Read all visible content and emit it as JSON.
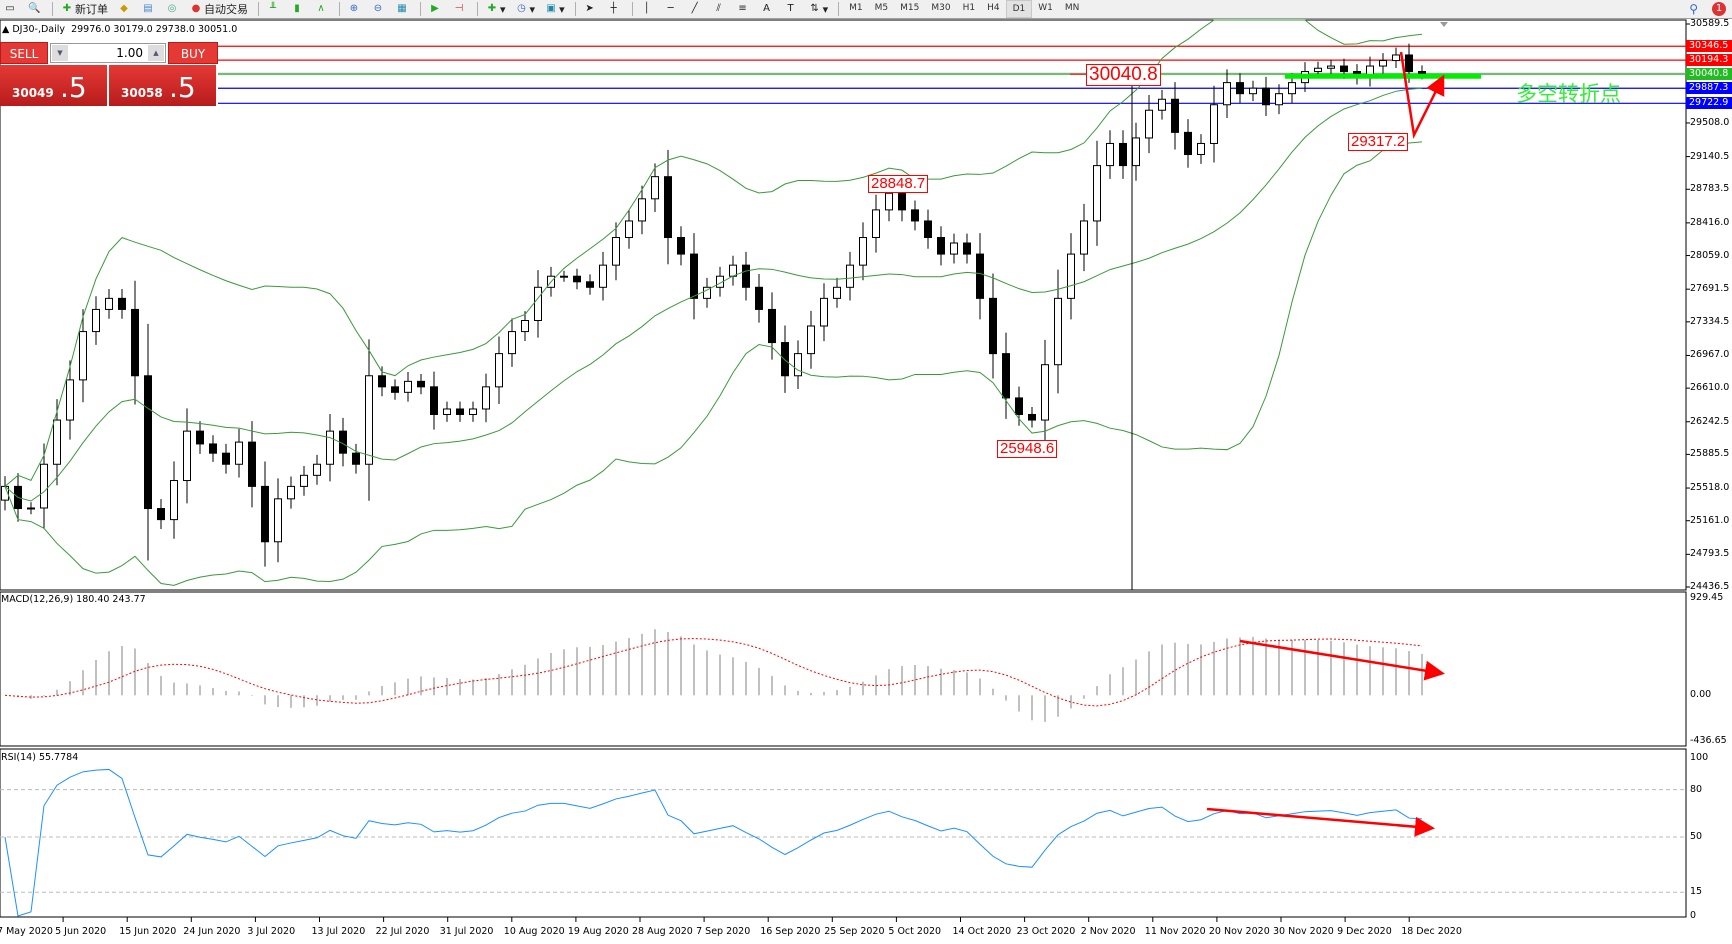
{
  "toolbar": {
    "new_order_label": "新订单",
    "auto_trading_label": "自动交易",
    "timeframes": [
      "M1",
      "M5",
      "M15",
      "M30",
      "H1",
      "H4",
      "D1",
      "W1",
      "MN"
    ],
    "active_timeframe": "D1",
    "notification_count": "1"
  },
  "chart_header": {
    "symbol_title": "DJ30-,Daily",
    "ohlc": "29976.0 30179.0 29738.0 30051.0"
  },
  "one_click_trading": {
    "sell_label": "SELL",
    "buy_label": "BUY",
    "lot_value": "1.00",
    "sell_price_main": "30049",
    "sell_price_big": ".5",
    "buy_price_main": "30058",
    "buy_price_big": ".5"
  },
  "price_axis": {
    "max": 30589.5,
    "min": 24436.5,
    "ticks": [
      "30589.5",
      "29508.0",
      "29140.5",
      "28783.5",
      "28416.0",
      "28059.0",
      "27691.5",
      "27334.5",
      "26967.0",
      "26610.0",
      "26242.5",
      "25885.5",
      "25518.0",
      "25161.0",
      "24793.5",
      "24436.5"
    ]
  },
  "horizontal_lines": [
    {
      "value": "30346.5",
      "color": "#ff0000"
    },
    {
      "value": "30194.3",
      "color": "#ff0000"
    },
    {
      "value": "30040.8",
      "color": "#22bb22"
    },
    {
      "value": "29887.3",
      "color": "#0000ff"
    },
    {
      "value": "29722.9",
      "color": "#0000ff"
    }
  ],
  "annotations": {
    "level_label": "30040.8",
    "high_label": "28848.7",
    "low_label": "25948.6",
    "dip_label": "29317.2",
    "pivot_text": "多空转折点"
  },
  "candles_close": [
    25536,
    25294,
    25300,
    25778,
    26261,
    26700,
    27228,
    27470,
    27591,
    27470,
    26745,
    25294,
    25173,
    25600,
    26140,
    26000,
    25899,
    25778,
    26020,
    25536,
    24931,
    25400,
    25536,
    25657,
    25778,
    26140,
    25899,
    25778,
    26745,
    26624,
    26564,
    26684,
    26624,
    26322,
    26382,
    26322,
    26382,
    26624,
    26987,
    27228,
    27349,
    27712,
    27833,
    27833,
    27772,
    27712,
    27954,
    28256,
    28437,
    28679,
    28921,
    28256,
    28075,
    27591,
    27712,
    27833,
    27954,
    27712,
    27470,
    27108,
    26745,
    26987,
    27289,
    27591,
    27712,
    27954,
    28256,
    28558,
    28740,
    28558,
    28437,
    28256,
    28075,
    28196,
    28075,
    27591,
    26987,
    26503,
    26322,
    26261,
    26866,
    27591,
    28075,
    28437,
    29042,
    29284,
    29042,
    29344,
    29647,
    29767,
    29405,
    29163,
    29284,
    29707,
    29949,
    29828,
    29888,
    29707,
    29828,
    29949,
    30070,
    30106,
    30130,
    30070,
    30009,
    30130,
    30190,
    30251,
    30070,
    30051
  ],
  "macd": {
    "label": "MACD(12,26,9) 180.40 243.77",
    "ticks": [
      "929.45",
      "0.00",
      "-436.65"
    ],
    "max": 929.45,
    "min": -436.65
  },
  "rsi": {
    "label": "RSI(14) 55.7784",
    "ticks": [
      "100",
      "80",
      "50",
      "15",
      "0"
    ],
    "levels": [
      80,
      50,
      15
    ]
  },
  "time_axis": [
    "27 May 2020",
    "5 Jun 2020",
    "15 Jun 2020",
    "24 Jun 2020",
    "3 Jul 2020",
    "13 Jul 2020",
    "22 Jul 2020",
    "31 Jul 2020",
    "10 Aug 2020",
    "19 Aug 2020",
    "28 Aug 2020",
    "7 Sep 2020",
    "16 Sep 2020",
    "25 Sep 2020",
    "5 Oct 2020",
    "14 Oct 2020",
    "23 Oct 2020",
    "2 Nov 2020",
    "11 Nov 2020",
    "20 Nov 2020",
    "30 Nov 2020",
    "9 Dec 2020",
    "18 Dec 2020"
  ],
  "colors": {
    "bands": "#3a9a3a",
    "signal": "#ff0000",
    "histogram": "#c0c0c0",
    "rsi": "#1e90ff",
    "arrow": "#ff0000",
    "pivot": "#33ee33"
  }
}
